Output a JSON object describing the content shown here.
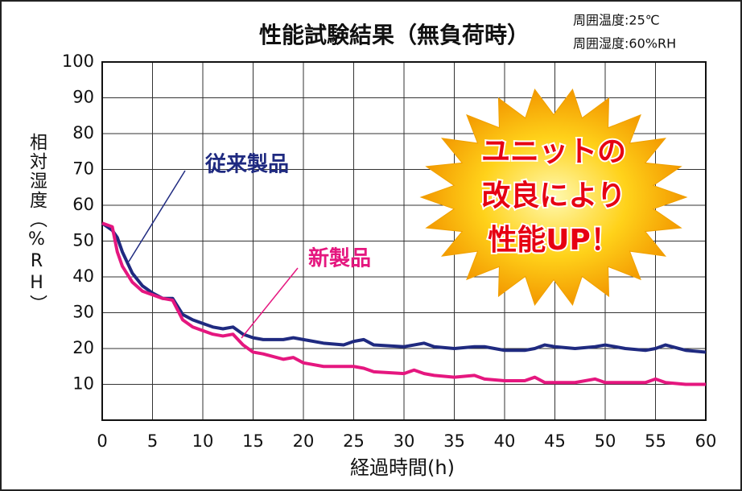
{
  "chart_data": {
    "type": "line",
    "title": "性能試験結果（無負荷時）",
    "notes": [
      "周囲温度:25℃",
      "周囲湿度:60%RH"
    ],
    "x_label": "経過時間(h)",
    "y_label": "相対湿度（%RH）",
    "callout": [
      "ユニットの",
      "改良により",
      "性能UP！"
    ],
    "x": [
      0,
      1,
      1.5,
      2,
      3,
      4,
      5,
      6,
      7,
      8,
      9,
      10,
      11,
      12,
      13,
      14,
      15,
      16,
      18,
      19,
      20,
      22,
      24,
      25,
      26,
      27,
      30,
      31,
      32,
      33,
      35,
      37,
      38,
      40,
      42,
      43,
      44,
      45,
      47,
      49,
      50,
      52,
      54,
      55,
      56,
      58,
      60
    ],
    "series": [
      {
        "name": "従来製品",
        "color": "#1f2a80",
        "values": [
          55,
          53,
          51,
          47,
          41,
          37.5,
          35.5,
          34,
          34,
          29.5,
          28,
          27,
          26,
          25.5,
          26,
          24,
          23,
          22.5,
          22.5,
          23,
          22.5,
          21.5,
          21,
          22,
          22.5,
          21,
          20.5,
          21,
          21.5,
          20.5,
          20,
          20.5,
          20.5,
          19.5,
          19.5,
          20,
          21,
          20.5,
          20,
          20.5,
          21,
          20,
          19.5,
          20,
          21,
          19.5,
          19
        ]
      },
      {
        "name": "新製品",
        "color": "#e5177f",
        "values": [
          55,
          54,
          47,
          43,
          38.5,
          36,
          35,
          34,
          33.5,
          28,
          26,
          25,
          24,
          23.5,
          24,
          21,
          19,
          18.5,
          17,
          17.5,
          16,
          15,
          15,
          15,
          14.5,
          13.5,
          13,
          14,
          13,
          12.5,
          12,
          12.5,
          11.5,
          11,
          11,
          12,
          10.5,
          10.5,
          10.5,
          11.5,
          10.5,
          10.5,
          10.5,
          11.5,
          10.5,
          10,
          10
        ]
      }
    ],
    "xlim": [
      0,
      60
    ],
    "xticks": [
      0,
      5,
      10,
      15,
      20,
      25,
      30,
      35,
      40,
      45,
      50,
      55,
      60
    ],
    "ylim": [
      0,
      100
    ],
    "yticks": [
      10,
      20,
      30,
      40,
      50,
      60,
      70,
      80,
      90,
      100
    ],
    "grid": true
  }
}
